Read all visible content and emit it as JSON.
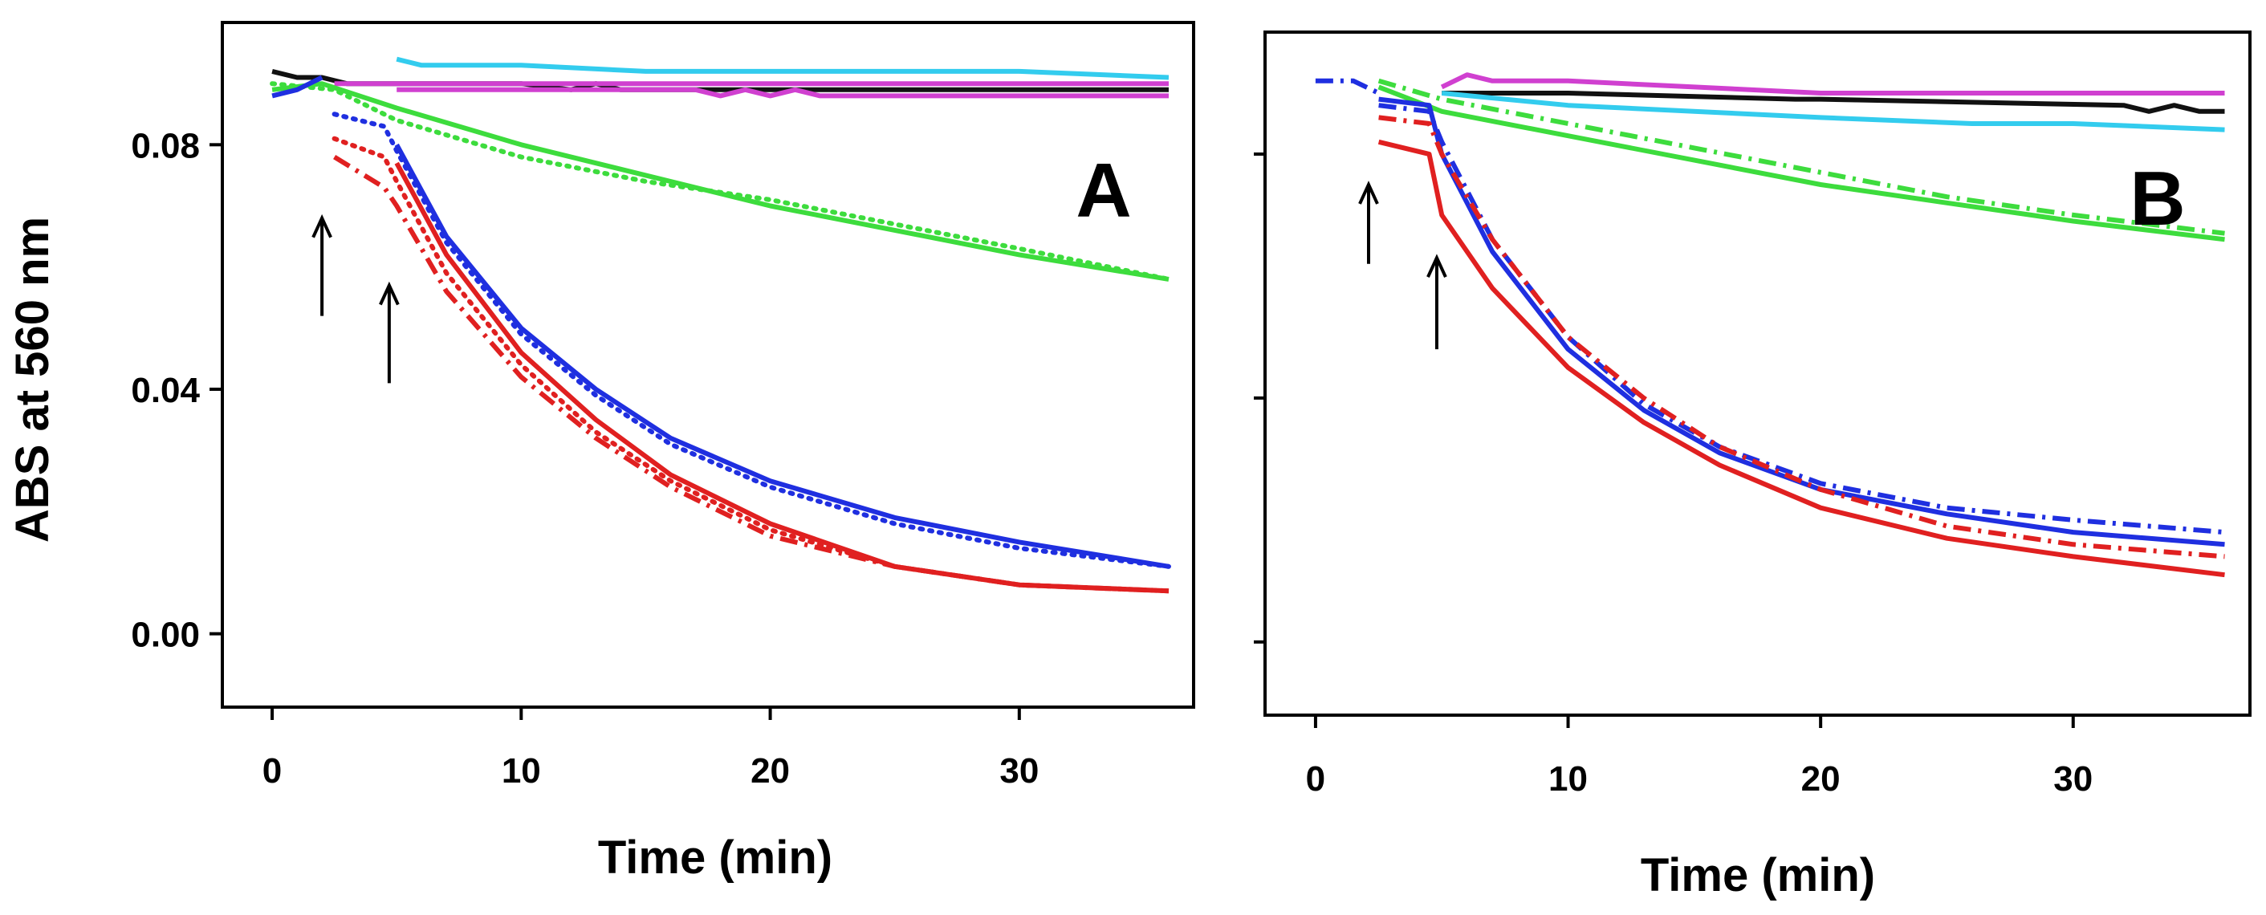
{
  "figure_labels": {
    "panel_a": "A",
    "panel_b": "B",
    "y_axis_title": "ABS at 560 nm",
    "x_axis_title_a": "Time (min)",
    "x_axis_title_b": "Time (min)"
  },
  "colors": {
    "red": "#e02020",
    "blue": "#1f2fe0",
    "green": "#3ddc3d",
    "cyan": "#33ccee",
    "magenta": "#d040d0",
    "black": "#111111"
  },
  "chart_data": [
    {
      "type": "line",
      "panel": "A",
      "title": "A",
      "xlabel": "Time (min)",
      "ylabel": "ABS at 560 nm",
      "xlim": [
        -2,
        37
      ],
      "ylim": [
        -0.012,
        0.1
      ],
      "xticks": [
        "0",
        "10",
        "20",
        "30"
      ],
      "yticks": [
        "0.08",
        "0.04",
        "0.00"
      ],
      "annotations": [
        {
          "name": "arrow-1",
          "x": 2.0,
          "y_tail": 0.052,
          "y_head": 0.068
        },
        {
          "name": "arrow-2",
          "x": 4.7,
          "y_tail": 0.041,
          "y_head": 0.057
        }
      ],
      "series": [
        {
          "name": "black-solid",
          "color": "black",
          "style": "solid",
          "x": [
            0,
            1,
            2,
            3,
            5,
            10,
            12,
            13,
            14,
            20,
            36
          ],
          "y": [
            0.092,
            0.091,
            0.091,
            0.09,
            0.09,
            0.09,
            0.089,
            0.09,
            0.089,
            0.089,
            0.089
          ]
        },
        {
          "name": "cyan-solid",
          "color": "cyan",
          "style": "solid",
          "x": [
            5,
            6,
            10,
            15,
            20,
            30,
            36
          ],
          "y": [
            0.094,
            0.093,
            0.093,
            0.092,
            0.092,
            0.092,
            0.091
          ]
        },
        {
          "name": "magenta-solid-1",
          "color": "magenta",
          "style": "solid",
          "x": [
            2.5,
            5,
            10,
            20,
            36
          ],
          "y": [
            0.09,
            0.09,
            0.09,
            0.09,
            0.09
          ]
        },
        {
          "name": "magenta-solid-2",
          "color": "magenta",
          "style": "solid",
          "x": [
            5,
            17,
            18,
            19,
            20,
            21,
            22,
            36
          ],
          "y": [
            0.089,
            0.089,
            0.088,
            0.089,
            0.088,
            0.089,
            0.088,
            0.088
          ]
        },
        {
          "name": "green-dotted",
          "color": "green",
          "style": "dotted",
          "x": [
            0,
            2.5,
            5,
            10,
            15,
            20,
            25,
            30,
            36
          ],
          "y": [
            0.09,
            0.089,
            0.084,
            0.078,
            0.074,
            0.071,
            0.067,
            0.063,
            0.058
          ]
        },
        {
          "name": "green-solid",
          "color": "green",
          "style": "solid",
          "x": [
            0,
            2,
            5,
            10,
            15,
            20,
            25,
            30,
            36
          ],
          "y": [
            0.089,
            0.09,
            0.086,
            0.08,
            0.075,
            0.07,
            0.066,
            0.062,
            0.058
          ]
        },
        {
          "name": "blue-pre",
          "color": "blue",
          "style": "solid",
          "x": [
            0,
            1,
            2
          ],
          "y": [
            0.088,
            0.089,
            0.091
          ]
        },
        {
          "name": "blue-solid",
          "color": "blue",
          "style": "solid",
          "x": [
            5,
            7,
            10,
            13,
            16,
            20,
            25,
            30,
            36
          ],
          "y": [
            0.08,
            0.065,
            0.05,
            0.04,
            0.032,
            0.025,
            0.019,
            0.015,
            0.011
          ]
        },
        {
          "name": "blue-dotted",
          "color": "blue",
          "style": "dotted",
          "x": [
            2.5,
            4.5,
            5,
            7,
            10,
            13,
            16,
            20,
            25,
            30,
            36
          ],
          "y": [
            0.085,
            0.083,
            0.079,
            0.064,
            0.049,
            0.039,
            0.031,
            0.024,
            0.018,
            0.014,
            0.011
          ]
        },
        {
          "name": "red-solid",
          "color": "red",
          "style": "solid",
          "x": [
            5,
            7,
            10,
            13,
            16,
            20,
            25,
            30,
            36
          ],
          "y": [
            0.077,
            0.062,
            0.046,
            0.035,
            0.026,
            0.018,
            0.011,
            0.008,
            0.007
          ]
        },
        {
          "name": "red-dotted",
          "color": "red",
          "style": "dotted",
          "x": [
            2.5,
            4.5,
            5,
            7,
            10,
            13,
            16,
            20,
            25,
            30,
            36
          ],
          "y": [
            0.081,
            0.078,
            0.074,
            0.059,
            0.044,
            0.033,
            0.025,
            0.017,
            0.011,
            0.008,
            0.007
          ]
        },
        {
          "name": "red-dashdot",
          "color": "red",
          "style": "dashdot",
          "x": [
            2.5,
            4.5,
            5,
            7,
            10,
            13,
            16,
            20,
            25,
            30,
            36
          ],
          "y": [
            0.078,
            0.073,
            0.07,
            0.056,
            0.042,
            0.032,
            0.024,
            0.016,
            0.011,
            0.008,
            0.007
          ]
        }
      ]
    },
    {
      "type": "line",
      "panel": "B",
      "title": "B",
      "xlabel": "Time (min)",
      "ylabel": "",
      "xlim": [
        -2,
        37
      ],
      "ylim": [
        -0.012,
        0.1
      ],
      "xticks": [
        "0",
        "10",
        "20",
        "30"
      ],
      "yticks": [],
      "annotations": [
        {
          "name": "arrow-1",
          "x": 2.1,
          "y_tail": 0.062,
          "y_head": 0.075
        },
        {
          "name": "arrow-2",
          "x": 4.8,
          "y_tail": 0.048,
          "y_head": 0.063
        }
      ],
      "series": [
        {
          "name": "blue-pre",
          "color": "blue",
          "style": "dashdot",
          "x": [
            0,
            1.5,
            2.5
          ],
          "y": [
            0.092,
            0.092,
            0.09
          ]
        },
        {
          "name": "black-solid",
          "color": "black",
          "style": "solid",
          "x": [
            5,
            10,
            19,
            20,
            32,
            33,
            34,
            35,
            36
          ],
          "y": [
            0.09,
            0.09,
            0.089,
            0.089,
            0.088,
            0.087,
            0.088,
            0.087,
            0.087
          ]
        },
        {
          "name": "magenta-solid",
          "color": "magenta",
          "style": "solid",
          "x": [
            5,
            6,
            7,
            10,
            15,
            20,
            36
          ],
          "y": [
            0.091,
            0.093,
            0.092,
            0.092,
            0.091,
            0.09,
            0.09
          ]
        },
        {
          "name": "cyan-solid",
          "color": "cyan",
          "style": "solid",
          "x": [
            5,
            10,
            20,
            26,
            30,
            36
          ],
          "y": [
            0.09,
            0.088,
            0.086,
            0.085,
            0.085,
            0.084
          ]
        },
        {
          "name": "green-solid",
          "color": "green",
          "style": "solid",
          "x": [
            2.5,
            5,
            10,
            15,
            20,
            25,
            30,
            36
          ],
          "y": [
            0.091,
            0.087,
            0.083,
            0.079,
            0.075,
            0.072,
            0.069,
            0.066
          ]
        },
        {
          "name": "green-dashdot",
          "color": "green",
          "style": "dashdot",
          "x": [
            2.5,
            5,
            10,
            15,
            20,
            25,
            30,
            36
          ],
          "y": [
            0.092,
            0.089,
            0.085,
            0.081,
            0.077,
            0.073,
            0.07,
            0.067
          ]
        },
        {
          "name": "blue-solid",
          "color": "blue",
          "style": "solid",
          "x": [
            2.5,
            4.5,
            5,
            7,
            10,
            13,
            16,
            20,
            25,
            30,
            36
          ],
          "y": [
            0.089,
            0.088,
            0.08,
            0.064,
            0.048,
            0.038,
            0.031,
            0.025,
            0.021,
            0.018,
            0.016
          ]
        },
        {
          "name": "blue-dashdot",
          "color": "blue",
          "style": "dashdot",
          "x": [
            2.5,
            4.5,
            5,
            7,
            10,
            13,
            16,
            20,
            25,
            30,
            36
          ],
          "y": [
            0.088,
            0.087,
            0.082,
            0.066,
            0.05,
            0.039,
            0.032,
            0.026,
            0.022,
            0.02,
            0.018
          ]
        },
        {
          "name": "red-solid",
          "color": "red",
          "style": "solid",
          "x": [
            2.5,
            4.5,
            5,
            7,
            10,
            13,
            16,
            20,
            25,
            30,
            36
          ],
          "y": [
            0.082,
            0.08,
            0.07,
            0.058,
            0.045,
            0.036,
            0.029,
            0.022,
            0.017,
            0.014,
            0.011
          ]
        },
        {
          "name": "red-dashdot",
          "color": "red",
          "style": "dashdot",
          "x": [
            2.5,
            4.5,
            5,
            7,
            10,
            13,
            16,
            20,
            25,
            30,
            36
          ],
          "y": [
            0.086,
            0.085,
            0.08,
            0.066,
            0.05,
            0.04,
            0.032,
            0.025,
            0.019,
            0.016,
            0.014
          ]
        }
      ]
    }
  ]
}
